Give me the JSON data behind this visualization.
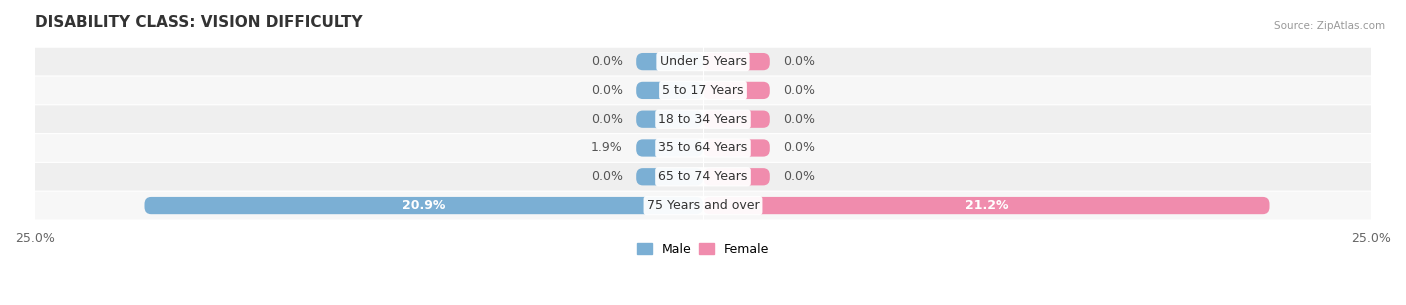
{
  "title": "DISABILITY CLASS: VISION DIFFICULTY",
  "source": "Source: ZipAtlas.com",
  "categories": [
    "Under 5 Years",
    "5 to 17 Years",
    "18 to 34 Years",
    "35 to 64 Years",
    "65 to 74 Years",
    "75 Years and over"
  ],
  "male_values": [
    0.0,
    0.0,
    0.0,
    1.9,
    0.0,
    20.9
  ],
  "female_values": [
    0.0,
    0.0,
    0.0,
    0.0,
    0.0,
    21.2
  ],
  "male_color": "#7bafd4",
  "female_color": "#f08cad",
  "row_bg_even": "#efefef",
  "row_bg_odd": "#f7f7f7",
  "xlim": 25.0,
  "min_bar_width": 2.5,
  "title_fontsize": 11,
  "label_fontsize": 9,
  "tick_fontsize": 9,
  "bar_height": 0.6,
  "background_color": "#ffffff"
}
